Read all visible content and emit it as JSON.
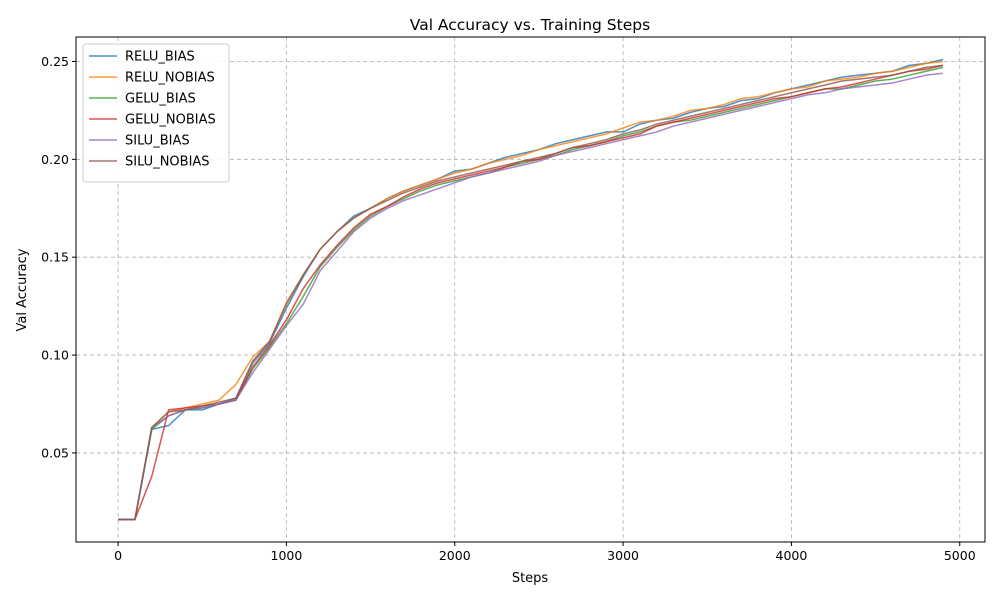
{
  "chart_data": {
    "type": "line",
    "title": "Val Accuracy vs. Training Steps",
    "xlabel": "Steps",
    "ylabel": "Val Accuracy",
    "xlim": [
      -250,
      5150
    ],
    "ylim": [
      0.0045,
      0.2625
    ],
    "xticks": [
      0,
      1000,
      2000,
      3000,
      4000,
      5000
    ],
    "yticks": [
      0.05,
      0.1,
      0.15,
      0.2,
      0.25
    ],
    "xtick_labels": [
      "0",
      "1000",
      "2000",
      "3000",
      "4000",
      "5000"
    ],
    "ytick_labels": [
      "0.05",
      "0.10",
      "0.15",
      "0.20",
      "0.25"
    ],
    "grid": true,
    "legend_position": "upper-left",
    "x": [
      0,
      100,
      200,
      300,
      400,
      500,
      600,
      700,
      800,
      900,
      1000,
      1100,
      1200,
      1300,
      1400,
      1500,
      1600,
      1700,
      1800,
      1900,
      2000,
      2100,
      2200,
      2300,
      2400,
      2500,
      2600,
      2700,
      2800,
      2900,
      3000,
      3100,
      3200,
      3300,
      3400,
      3500,
      3600,
      3700,
      3800,
      3900,
      4000,
      4100,
      4200,
      4300,
      4400,
      4500,
      4600,
      4700,
      4800,
      4900
    ],
    "series": [
      {
        "name": "RELU_BIAS",
        "color": "#1f77b4",
        "values": [
          0.016,
          0.016,
          0.062,
          0.064,
          0.072,
          0.072,
          0.075,
          0.078,
          0.096,
          0.106,
          0.124,
          0.14,
          0.154,
          0.163,
          0.171,
          0.175,
          0.18,
          0.184,
          0.187,
          0.19,
          0.194,
          0.195,
          0.198,
          0.201,
          0.203,
          0.205,
          0.208,
          0.21,
          0.212,
          0.214,
          0.214,
          0.218,
          0.22,
          0.221,
          0.224,
          0.226,
          0.227,
          0.23,
          0.231,
          0.234,
          0.236,
          0.238,
          0.24,
          0.242,
          0.243,
          0.244,
          0.245,
          0.248,
          0.249,
          0.251
        ]
      },
      {
        "name": "RELU_NOBIAS",
        "color": "#ff7f0e",
        "values": [
          0.016,
          0.016,
          0.063,
          0.071,
          0.073,
          0.075,
          0.077,
          0.085,
          0.099,
          0.107,
          0.127,
          0.141,
          0.154,
          0.163,
          0.17,
          0.175,
          0.18,
          0.184,
          0.187,
          0.19,
          0.193,
          0.195,
          0.198,
          0.2,
          0.202,
          0.205,
          0.207,
          0.209,
          0.211,
          0.213,
          0.216,
          0.219,
          0.22,
          0.222,
          0.225,
          0.226,
          0.228,
          0.231,
          0.232,
          0.234,
          0.236,
          0.237,
          0.24,
          0.241,
          0.242,
          0.244,
          0.245,
          0.247,
          0.249,
          0.25
        ]
      },
      {
        "name": "GELU_BIAS",
        "color": "#2ca02c",
        "values": [
          0.016,
          0.016,
          0.062,
          0.069,
          0.072,
          0.073,
          0.075,
          0.077,
          0.093,
          0.104,
          0.116,
          0.13,
          0.145,
          0.155,
          0.164,
          0.171,
          0.176,
          0.18,
          0.184,
          0.187,
          0.189,
          0.191,
          0.193,
          0.196,
          0.198,
          0.2,
          0.202,
          0.205,
          0.207,
          0.209,
          0.212,
          0.214,
          0.217,
          0.219,
          0.22,
          0.222,
          0.224,
          0.226,
          0.228,
          0.23,
          0.232,
          0.234,
          0.236,
          0.236,
          0.238,
          0.24,
          0.241,
          0.243,
          0.245,
          0.247
        ]
      },
      {
        "name": "GELU_NOBIAS",
        "color": "#d62728",
        "values": [
          0.016,
          0.016,
          0.038,
          0.072,
          0.073,
          0.074,
          0.075,
          0.077,
          0.094,
          0.105,
          0.118,
          0.134,
          0.146,
          0.156,
          0.165,
          0.172,
          0.176,
          0.181,
          0.185,
          0.188,
          0.19,
          0.192,
          0.194,
          0.196,
          0.199,
          0.2,
          0.203,
          0.206,
          0.207,
          0.209,
          0.211,
          0.213,
          0.217,
          0.219,
          0.221,
          0.223,
          0.225,
          0.227,
          0.229,
          0.231,
          0.232,
          0.234,
          0.236,
          0.237,
          0.239,
          0.241,
          0.243,
          0.245,
          0.246,
          0.248
        ]
      },
      {
        "name": "SILU_BIAS",
        "color": "#9467bd",
        "values": [
          0.016,
          0.016,
          0.063,
          0.069,
          0.072,
          0.073,
          0.075,
          0.077,
          0.091,
          0.103,
          0.115,
          0.126,
          0.143,
          0.153,
          0.163,
          0.17,
          0.175,
          0.179,
          0.182,
          0.185,
          0.188,
          0.191,
          0.193,
          0.195,
          0.197,
          0.199,
          0.202,
          0.204,
          0.206,
          0.208,
          0.21,
          0.212,
          0.214,
          0.217,
          0.219,
          0.221,
          0.223,
          0.225,
          0.227,
          0.229,
          0.231,
          0.233,
          0.234,
          0.236,
          0.237,
          0.238,
          0.239,
          0.241,
          0.243,
          0.244
        ]
      },
      {
        "name": "SILU_NOBIAS",
        "color": "#8c564b",
        "values": [
          0.016,
          0.016,
          0.063,
          0.071,
          0.072,
          0.074,
          0.076,
          0.078,
          0.097,
          0.107,
          0.126,
          0.141,
          0.154,
          0.163,
          0.17,
          0.175,
          0.179,
          0.183,
          0.186,
          0.189,
          0.191,
          0.193,
          0.195,
          0.197,
          0.199,
          0.201,
          0.203,
          0.206,
          0.208,
          0.21,
          0.213,
          0.215,
          0.218,
          0.22,
          0.222,
          0.224,
          0.226,
          0.228,
          0.23,
          0.232,
          0.234,
          0.236,
          0.238,
          0.24,
          0.241,
          0.242,
          0.243,
          0.245,
          0.247,
          0.248
        ]
      }
    ]
  }
}
